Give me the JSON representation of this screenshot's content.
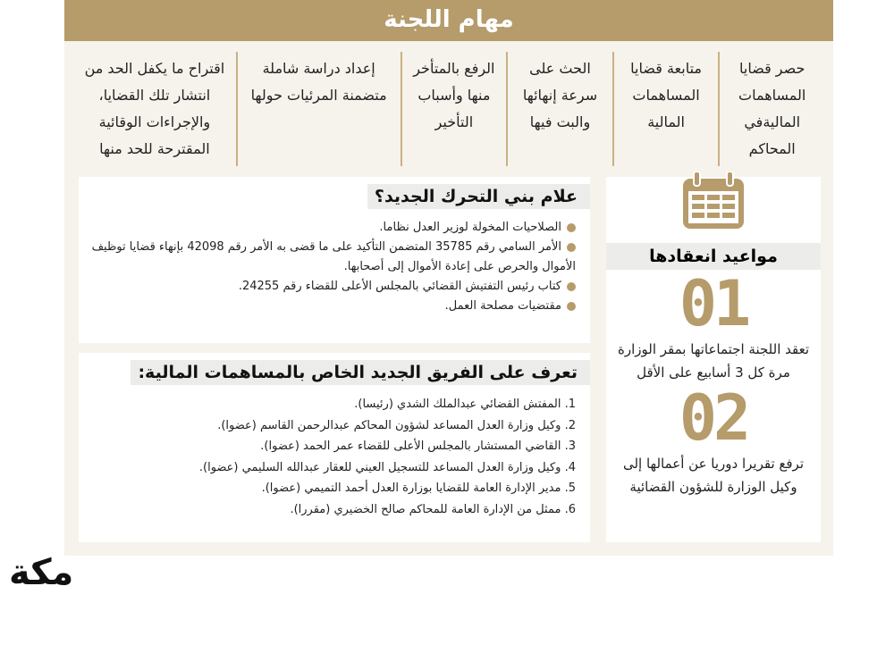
{
  "title": "مهام اللجنة",
  "tasks": [
    "حصر قضايا المساهمات الماليةفي المحاكم",
    "متابعة قضايا المساهمات المالية",
    "الحث على سرعة إنهائها والبت فيها",
    "الرفع بالمتأخر منها وأسباب التأخير",
    "إعداد دراسة شاملة متضمنة المرئيات حولها",
    "اقتراح ما يكفل الحد من انتشار تلك القضايا، والإجراءات الوقائية المقترحة للحد منها"
  ],
  "basis": {
    "title": "علام بني التحرك الجديد؟",
    "items": [
      "الصلاحيات المخولة لوزير العدل نظاما.",
      "الأمر السامي رقم 35785 المتضمن التأكيد على ما قضى به الأمر رقم 42098 بإنهاء قضايا توظيف الأموال والحرص على إعادة الأموال إلى أصحابها.",
      "كتاب رئيس التفتيش القضائي بالمجلس الأعلى للقضاء رقم 24255.",
      "مقتضيات مصلحة العمل."
    ]
  },
  "team": {
    "title": "تعرف على الفريق الجديد الخاص بالمساهمات المالية:",
    "members": [
      "1. المفتش القضائي عبدالملك الشدي (رئيسا).",
      "2. وكيل وزارة العدل المساعد لشؤون المحاكم عبدالرحمن القاسم (عضوا).",
      "3. القاضي المستشار بالمجلس الأعلى للقضاء عمر الحمد (عضوا).",
      "4. وكيل وزارة العدل المساعد للتسجيل العيني للعقار عبدالله السليمي (عضوا).",
      "5. مدير الإدارة العامة للقضايا بوزارة العدل أحمد التميمي (عضوا).",
      "6. ممثل من الإدارة العامة للمحاكم صالح الخضيري (مقررا)."
    ]
  },
  "schedule": {
    "title": "مواعيد انعقادها",
    "icon": "calendar-icon",
    "items": [
      {
        "num": "01",
        "text": "تعقد اللجنة اجتماعاتها بمقر الوزارة مرة كل 3 أسابيع على الأقل"
      },
      {
        "num": "02",
        "text": "ترفع تقريرا دوريا عن أعمالها إلى وكيل الوزارة للشؤون القضائية"
      }
    ]
  },
  "logo": "مكة",
  "colors": {
    "gold": "#b69b6b",
    "panel": "#f6f3ec"
  }
}
